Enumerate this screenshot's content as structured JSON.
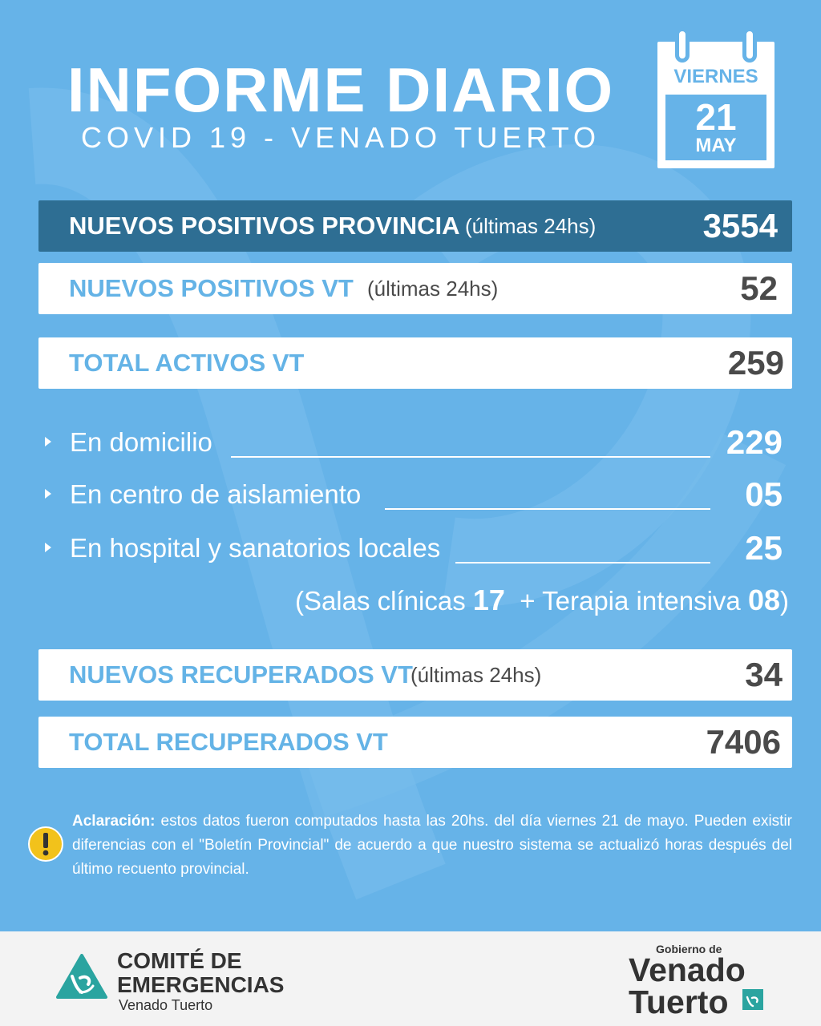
{
  "header": {
    "title": "INFORME DIARIO",
    "subtitle": "COVID 19 - VENADO TUERTO"
  },
  "calendar": {
    "day_name": "VIERNES",
    "day_number": "21",
    "month": "MAY"
  },
  "stats": {
    "provincia": {
      "label": "NUEVOS POSITIVOS PROVINCIA",
      "note": "(últimas 24hs)",
      "value": "3554"
    },
    "nuevos_vt": {
      "label": "NUEVOS POSITIVOS VT",
      "note": "(últimas 24hs)",
      "value": "52"
    },
    "activos_vt": {
      "label": "TOTAL ACTIVOS VT",
      "value": "259"
    },
    "nuevos_recuperados": {
      "label": "NUEVOS RECUPERADOS VT",
      "note": "(últimas 24hs)",
      "value": "34"
    },
    "total_recuperados": {
      "label": "TOTAL RECUPERADOS VT",
      "value": "7406"
    }
  },
  "breakdown": {
    "domicilio": {
      "label": "En domicilio",
      "value": "229"
    },
    "aislamiento": {
      "label": "En centro de aislamiento",
      "value": "05"
    },
    "hospital": {
      "label": "En hospital y sanatorios locales",
      "value": "25"
    },
    "detail": {
      "open": "(",
      "salas_label": "Salas clínicas",
      "salas_value": "17",
      "plus": "+",
      "terapia_label": "Terapia intensiva",
      "terapia_value": "08",
      "close": ")"
    }
  },
  "notice": {
    "bold": "Aclaración:",
    "text": " estos datos fueron computados hasta las 20hs. del día viernes 21 de mayo. Pueden existir diferencias con el \"Boletín Provincial\" de acuerdo a que nuestro sistema se actualizó horas después del último recuento provincial."
  },
  "footer": {
    "org_line1": "COMITÉ DE",
    "org_line2": "EMERGENCIAS",
    "org_city": "Venado Tuerto",
    "gov_small": "Gobierno de",
    "gov_line1": "Venado",
    "gov_line2": "Tuerto"
  },
  "colors": {
    "background": "#66b3e8",
    "dark_bar": "#2e6e93",
    "label_blue": "#64b3e6",
    "warning": "#f2c21b"
  }
}
